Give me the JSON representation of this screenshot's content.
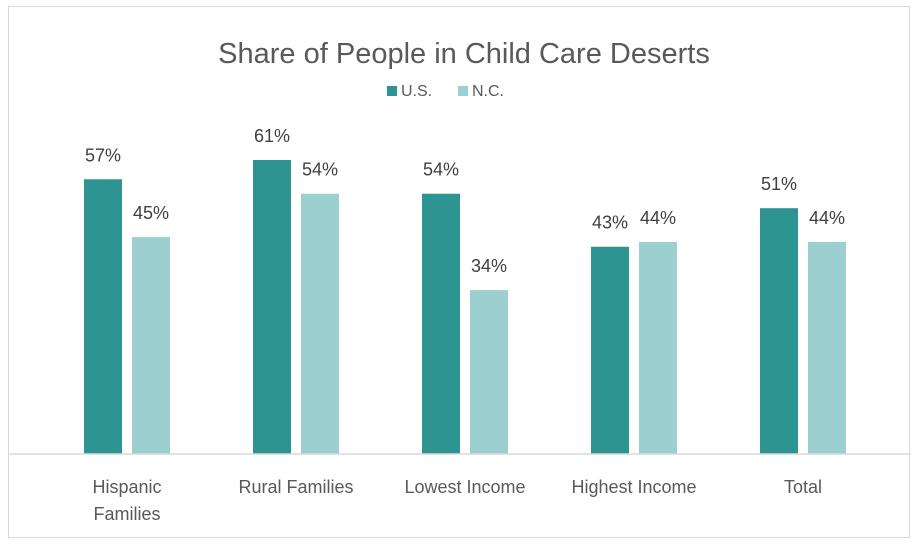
{
  "chart_data": {
    "type": "bar",
    "title": "Share of People in Child Care Deserts",
    "categories": [
      [
        "Hispanic",
        "Families"
      ],
      [
        "Rural Families"
      ],
      [
        "Lowest Income"
      ],
      [
        "Highest Income"
      ],
      [
        "Total"
      ]
    ],
    "series": [
      {
        "name": "U.S.",
        "color": "#2e9492",
        "values": [
          57,
          61,
          54,
          43,
          51
        ],
        "labels": [
          "57%",
          "61%",
          "54%",
          "43%",
          "51%"
        ]
      },
      {
        "name": "N.C.",
        "color": "#9ccfd0",
        "values": [
          45,
          54,
          34,
          44,
          44
        ],
        "labels": [
          "45%",
          "54%",
          "34%",
          "44%",
          "44%"
        ]
      }
    ],
    "ylim": [
      0,
      65
    ],
    "y_unit": "%",
    "grid": false,
    "legend_position": "top-center"
  }
}
